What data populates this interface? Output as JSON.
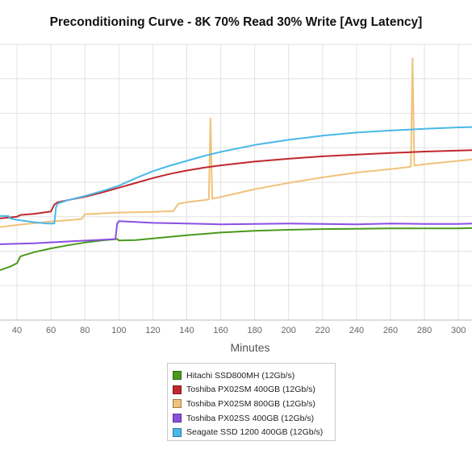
{
  "title": "Preconditioning Curve - 8K 70% Read 30% Write [Avg Latency]",
  "chart_data": {
    "type": "line",
    "title": "Preconditioning Curve - 8K 70% Read 30% Write [Avg Latency]",
    "xlabel": "Minutes",
    "ylabel": "",
    "xlim": [
      30,
      308
    ],
    "ylim": [
      0,
      8
    ],
    "x_ticks": [
      40,
      60,
      80,
      100,
      120,
      140,
      160,
      180,
      200,
      220,
      240,
      260,
      280,
      300
    ],
    "grid": true,
    "legend_position": "bottom",
    "series": [
      {
        "name": "Hitachi SSD800MH (12Gb/s)",
        "color": "#4a9a1c",
        "points": [
          [
            30,
            1.45
          ],
          [
            36,
            1.55
          ],
          [
            40,
            1.65
          ],
          [
            42,
            1.85
          ],
          [
            50,
            1.97
          ],
          [
            60,
            2.08
          ],
          [
            70,
            2.17
          ],
          [
            80,
            2.25
          ],
          [
            90,
            2.31
          ],
          [
            99,
            2.35
          ],
          [
            100,
            2.31
          ],
          [
            110,
            2.32
          ],
          [
            120,
            2.37
          ],
          [
            140,
            2.46
          ],
          [
            160,
            2.54
          ],
          [
            180,
            2.59
          ],
          [
            200,
            2.62
          ],
          [
            220,
            2.64
          ],
          [
            240,
            2.65
          ],
          [
            260,
            2.66
          ],
          [
            280,
            2.66
          ],
          [
            300,
            2.66
          ],
          [
            308,
            2.67
          ]
        ]
      },
      {
        "name": "Toshiba PX02SM 400GB (12Gb/s)",
        "color": "#c0272d",
        "points": [
          [
            30,
            2.95
          ],
          [
            40,
            3.0
          ],
          [
            42,
            3.05
          ],
          [
            50,
            3.08
          ],
          [
            60,
            3.15
          ],
          [
            62,
            3.35
          ],
          [
            64,
            3.42
          ],
          [
            70,
            3.48
          ],
          [
            80,
            3.58
          ],
          [
            90,
            3.7
          ],
          [
            100,
            3.84
          ],
          [
            110,
            3.98
          ],
          [
            120,
            4.12
          ],
          [
            130,
            4.24
          ],
          [
            140,
            4.34
          ],
          [
            150,
            4.42
          ],
          [
            160,
            4.49
          ],
          [
            180,
            4.6
          ],
          [
            200,
            4.68
          ],
          [
            220,
            4.75
          ],
          [
            240,
            4.8
          ],
          [
            260,
            4.85
          ],
          [
            280,
            4.89
          ],
          [
            300,
            4.92
          ],
          [
            308,
            4.93
          ]
        ]
      },
      {
        "name": "Toshiba PX02SM 800GB (12Gb/s)",
        "color": "#f0c27a",
        "points": [
          [
            30,
            2.7
          ],
          [
            40,
            2.76
          ],
          [
            60,
            2.86
          ],
          [
            78,
            2.93
          ],
          [
            80,
            3.07
          ],
          [
            100,
            3.12
          ],
          [
            120,
            3.14
          ],
          [
            132,
            3.16
          ],
          [
            135,
            3.37
          ],
          [
            140,
            3.42
          ],
          [
            150,
            3.48
          ],
          [
            153,
            3.5
          ],
          [
            154,
            5.85
          ],
          [
            155,
            3.52
          ],
          [
            160,
            3.57
          ],
          [
            180,
            3.8
          ],
          [
            200,
            3.98
          ],
          [
            220,
            4.14
          ],
          [
            240,
            4.28
          ],
          [
            260,
            4.38
          ],
          [
            272,
            4.45
          ],
          [
            273,
            7.6
          ],
          [
            274,
            4.48
          ],
          [
            280,
            4.52
          ],
          [
            300,
            4.62
          ],
          [
            308,
            4.66
          ]
        ]
      },
      {
        "name": "Toshiba PX02SS 400GB (12Gb/s)",
        "color": "#8a4fe0",
        "points": [
          [
            30,
            2.2
          ],
          [
            50,
            2.23
          ],
          [
            70,
            2.28
          ],
          [
            90,
            2.33
          ],
          [
            98,
            2.35
          ],
          [
            99,
            2.8
          ],
          [
            100,
            2.87
          ],
          [
            120,
            2.82
          ],
          [
            140,
            2.8
          ],
          [
            160,
            2.78
          ],
          [
            180,
            2.79
          ],
          [
            200,
            2.8
          ],
          [
            220,
            2.79
          ],
          [
            240,
            2.78
          ],
          [
            260,
            2.8
          ],
          [
            280,
            2.79
          ],
          [
            300,
            2.79
          ],
          [
            308,
            2.8
          ]
        ]
      },
      {
        "name": "Seagate SSD 1200 400GB (12Gb/s)",
        "color": "#4ab8e8",
        "points": [
          [
            30,
            3.02
          ],
          [
            35,
            3.02
          ],
          [
            36,
            2.95
          ],
          [
            40,
            2.91
          ],
          [
            50,
            2.84
          ],
          [
            58,
            2.8
          ],
          [
            62,
            2.8
          ],
          [
            63,
            3.27
          ],
          [
            64,
            3.38
          ],
          [
            70,
            3.48
          ],
          [
            80,
            3.6
          ],
          [
            90,
            3.74
          ],
          [
            100,
            3.9
          ],
          [
            110,
            4.12
          ],
          [
            120,
            4.32
          ],
          [
            130,
            4.48
          ],
          [
            140,
            4.62
          ],
          [
            150,
            4.76
          ],
          [
            160,
            4.88
          ],
          [
            180,
            5.08
          ],
          [
            200,
            5.23
          ],
          [
            220,
            5.35
          ],
          [
            240,
            5.44
          ],
          [
            260,
            5.5
          ],
          [
            280,
            5.55
          ],
          [
            300,
            5.59
          ],
          [
            308,
            5.6
          ]
        ]
      }
    ]
  }
}
